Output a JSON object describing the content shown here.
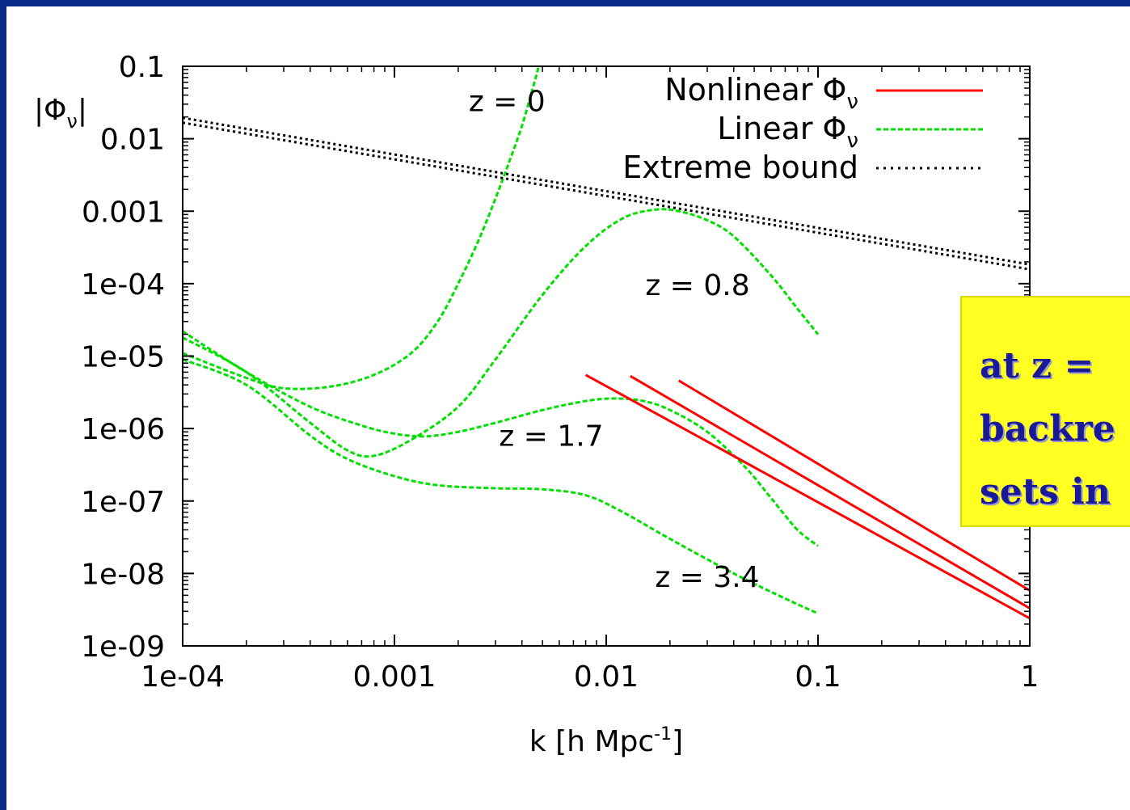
{
  "chart_data": {
    "type": "line",
    "xscale": "log",
    "yscale": "log",
    "xlim": [
      0.0001,
      1
    ],
    "ylim": [
      1e-09,
      0.1
    ],
    "xlabel": "k [h Mpc",
    "xlabel_sup": "-1",
    "xlabel_end": "]",
    "ylabel": "|Φ",
    "ylabel_sub": "ν",
    "ylabel_end": "|",
    "xticks": [
      {
        "value": 0.0001,
        "label": "1e-04"
      },
      {
        "value": 0.001,
        "label": "0.001"
      },
      {
        "value": 0.01,
        "label": "0.01"
      },
      {
        "value": 0.1,
        "label": "0.1"
      },
      {
        "value": 1,
        "label": "1"
      }
    ],
    "yticks": [
      {
        "value": 0.1,
        "label": "0.1"
      },
      {
        "value": 0.01,
        "label": "0.01"
      },
      {
        "value": 0.001,
        "label": "0.001"
      },
      {
        "value": 0.0001,
        "label": "1e-04"
      },
      {
        "value": 1e-05,
        "label": "1e-05"
      },
      {
        "value": 1e-06,
        "label": "1e-06"
      },
      {
        "value": 1e-07,
        "label": "1e-07"
      },
      {
        "value": 1e-08,
        "label": "1e-08"
      },
      {
        "value": 1e-09,
        "label": "1e-09"
      }
    ],
    "legend": {
      "position": "top-right",
      "entries": [
        {
          "label": "Nonlinear Φ",
          "sub": "ν",
          "color": "#ff0000",
          "style": "solid"
        },
        {
          "label": "Linear Φ",
          "sub": "ν",
          "color": "#00e000",
          "style": "dashed"
        },
        {
          "label": "Extreme bound",
          "sub": "",
          "color": "#000000",
          "style": "dotted"
        }
      ]
    },
    "series": [
      {
        "kind": "linear",
        "label": "z = 0",
        "label_at": [
          0.0034,
          0.024
        ],
        "points": [
          [
            0.0001,
            1.1e-05
          ],
          [
            0.0002,
            5e-06
          ],
          [
            0.0003,
            3.6e-06
          ],
          [
            0.0005,
            3.8e-06
          ],
          [
            0.0008,
            5.5e-06
          ],
          [
            0.0012,
            1.1e-05
          ],
          [
            0.0016,
            3e-05
          ],
          [
            0.002,
            0.0001
          ],
          [
            0.0025,
            0.0004
          ],
          [
            0.003,
            0.0015
          ],
          [
            0.0035,
            0.005
          ],
          [
            0.004,
            0.015
          ],
          [
            0.0045,
            0.05
          ],
          [
            0.0048,
            0.1
          ]
        ]
      },
      {
        "kind": "linear",
        "label": "z = 0.8",
        "label_at": [
          0.027,
          7e-05
        ],
        "points": [
          [
            0.0001,
            1.8e-05
          ],
          [
            0.0002,
            6e-06
          ],
          [
            0.0004,
            1.2e-06
          ],
          [
            0.0006,
            5e-07
          ],
          [
            0.0008,
            4.2e-07
          ],
          [
            0.0012,
            7e-07
          ],
          [
            0.002,
            2e-06
          ],
          [
            0.003,
            9e-06
          ],
          [
            0.005,
            7e-05
          ],
          [
            0.008,
            0.00033
          ],
          [
            0.012,
            0.0008
          ],
          [
            0.017,
            0.00105
          ],
          [
            0.022,
            0.001
          ],
          [
            0.03,
            0.00075
          ],
          [
            0.04,
            0.00045
          ],
          [
            0.06,
            0.00013
          ],
          [
            0.08,
            4.5e-05
          ],
          [
            0.1,
            2e-05
          ]
        ]
      },
      {
        "kind": "linear",
        "label": "z = 1.7",
        "label_at": [
          0.0055,
          5.8e-07
        ],
        "points": [
          [
            0.0001,
            2.2e-05
          ],
          [
            0.0002,
            6e-06
          ],
          [
            0.0004,
            2e-06
          ],
          [
            0.0007,
            1.1e-06
          ],
          [
            0.001,
            8.5e-07
          ],
          [
            0.0014,
            7.8e-07
          ],
          [
            0.002,
            9e-07
          ],
          [
            0.003,
            1.2e-06
          ],
          [
            0.005,
            1.8e-06
          ],
          [
            0.008,
            2.4e-06
          ],
          [
            0.011,
            2.6e-06
          ],
          [
            0.015,
            2.4e-06
          ],
          [
            0.02,
            1.8e-06
          ],
          [
            0.03,
            9e-07
          ],
          [
            0.045,
            3e-07
          ],
          [
            0.06,
            1.1e-07
          ],
          [
            0.08,
            4e-08
          ],
          [
            0.1,
            2.4e-08
          ]
        ]
      },
      {
        "kind": "linear",
        "label": "z = 3.4",
        "label_at": [
          0.03,
          6.5e-09
        ],
        "points": [
          [
            0.0001,
            9e-06
          ],
          [
            0.0002,
            4e-06
          ],
          [
            0.0004,
            8e-07
          ],
          [
            0.0006,
            3.8e-07
          ],
          [
            0.001,
            2.2e-07
          ],
          [
            0.0016,
            1.65e-07
          ],
          [
            0.003,
            1.5e-07
          ],
          [
            0.005,
            1.45e-07
          ],
          [
            0.008,
            1.2e-07
          ],
          [
            0.012,
            7e-08
          ],
          [
            0.02,
            3e-08
          ],
          [
            0.04,
            1e-08
          ],
          [
            0.07,
            4.5e-09
          ],
          [
            0.1,
            2.8e-09
          ]
        ]
      },
      {
        "kind": "nonlinear",
        "points": [
          [
            0.008,
            5.5e-06
          ],
          [
            1,
            2.4e-09
          ]
        ]
      },
      {
        "kind": "nonlinear",
        "points": [
          [
            0.013,
            5.3e-06
          ],
          [
            1,
            3.3e-09
          ]
        ]
      },
      {
        "kind": "nonlinear",
        "points": [
          [
            0.022,
            4.6e-06
          ],
          [
            1,
            5.8e-09
          ]
        ]
      },
      {
        "kind": "bound",
        "points": [
          [
            0.0001,
            0.018
          ],
          [
            1,
            0.00017
          ]
        ]
      }
    ]
  },
  "callout": {
    "lines": [
      "at z =",
      "backre",
      "sets in"
    ]
  }
}
